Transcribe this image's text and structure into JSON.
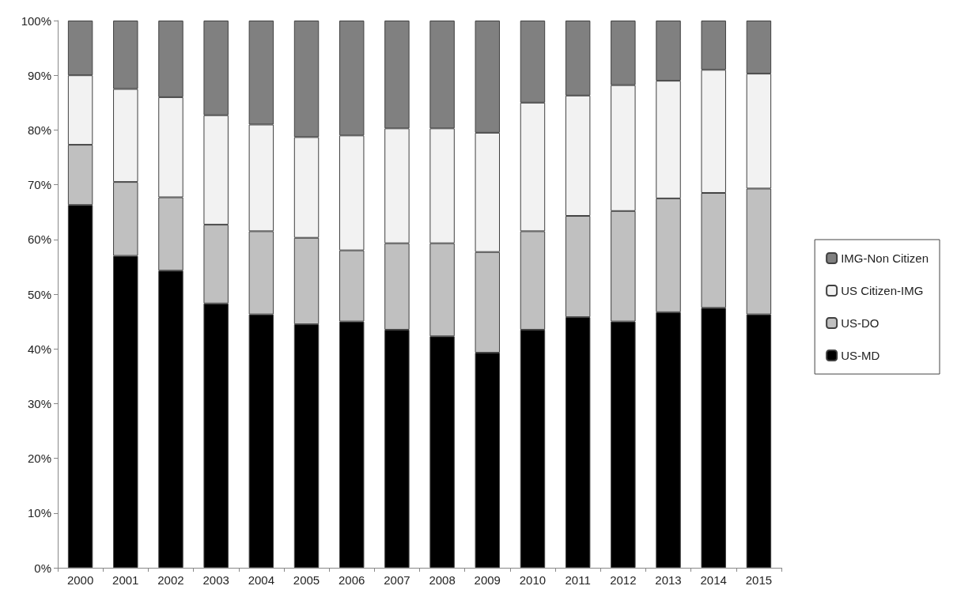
{
  "chart_data": {
    "type": "bar",
    "stacked": true,
    "categories": [
      "2000",
      "2001",
      "2002",
      "2003",
      "2004",
      "2005",
      "2006",
      "2007",
      "2008",
      "2009",
      "2010",
      "2011",
      "2012",
      "2013",
      "2014",
      "2015"
    ],
    "series": [
      {
        "name": "US-MD",
        "color": "#000000",
        "values": [
          66.3,
          57.0,
          54.3,
          48.3,
          46.3,
          44.5,
          45.0,
          43.5,
          42.3,
          39.3,
          43.5,
          45.8,
          45.0,
          46.7,
          47.5,
          46.3
        ]
      },
      {
        "name": "US-DO",
        "color": "#c0c0c0",
        "values": [
          11.0,
          13.5,
          13.4,
          14.4,
          15.2,
          15.8,
          13.0,
          15.8,
          17.0,
          18.4,
          18.0,
          18.5,
          20.2,
          20.8,
          21.0,
          23.0
        ]
      },
      {
        "name": "US Citizen-IMG",
        "color": "#f2f2f2",
        "values": [
          12.7,
          17.0,
          18.3,
          20.0,
          19.5,
          18.4,
          21.0,
          21.0,
          21.0,
          21.8,
          23.5,
          22.0,
          23.0,
          21.5,
          22.5,
          21.0
        ]
      },
      {
        "name": "IMG-Non Citizen",
        "color": "#808080",
        "values": [
          10.0,
          12.5,
          14.0,
          17.3,
          19.0,
          21.3,
          21.0,
          19.7,
          19.7,
          20.5,
          15.0,
          13.7,
          11.8,
          11.0,
          9.0,
          9.7
        ]
      }
    ],
    "ylim": [
      0,
      100
    ],
    "yticks": [
      {
        "value": 0,
        "label": "0%"
      },
      {
        "value": 10,
        "label": "10%"
      },
      {
        "value": 20,
        "label": "20%"
      },
      {
        "value": 30,
        "label": "30%"
      },
      {
        "value": 40,
        "label": "40%"
      },
      {
        "value": 50,
        "label": "50%"
      },
      {
        "value": 60,
        "label": "60%"
      },
      {
        "value": 70,
        "label": "70%"
      },
      {
        "value": 80,
        "label": "80%"
      },
      {
        "value": 90,
        "label": "90%"
      },
      {
        "value": 100,
        "label": "100%"
      }
    ],
    "legend": "right"
  }
}
